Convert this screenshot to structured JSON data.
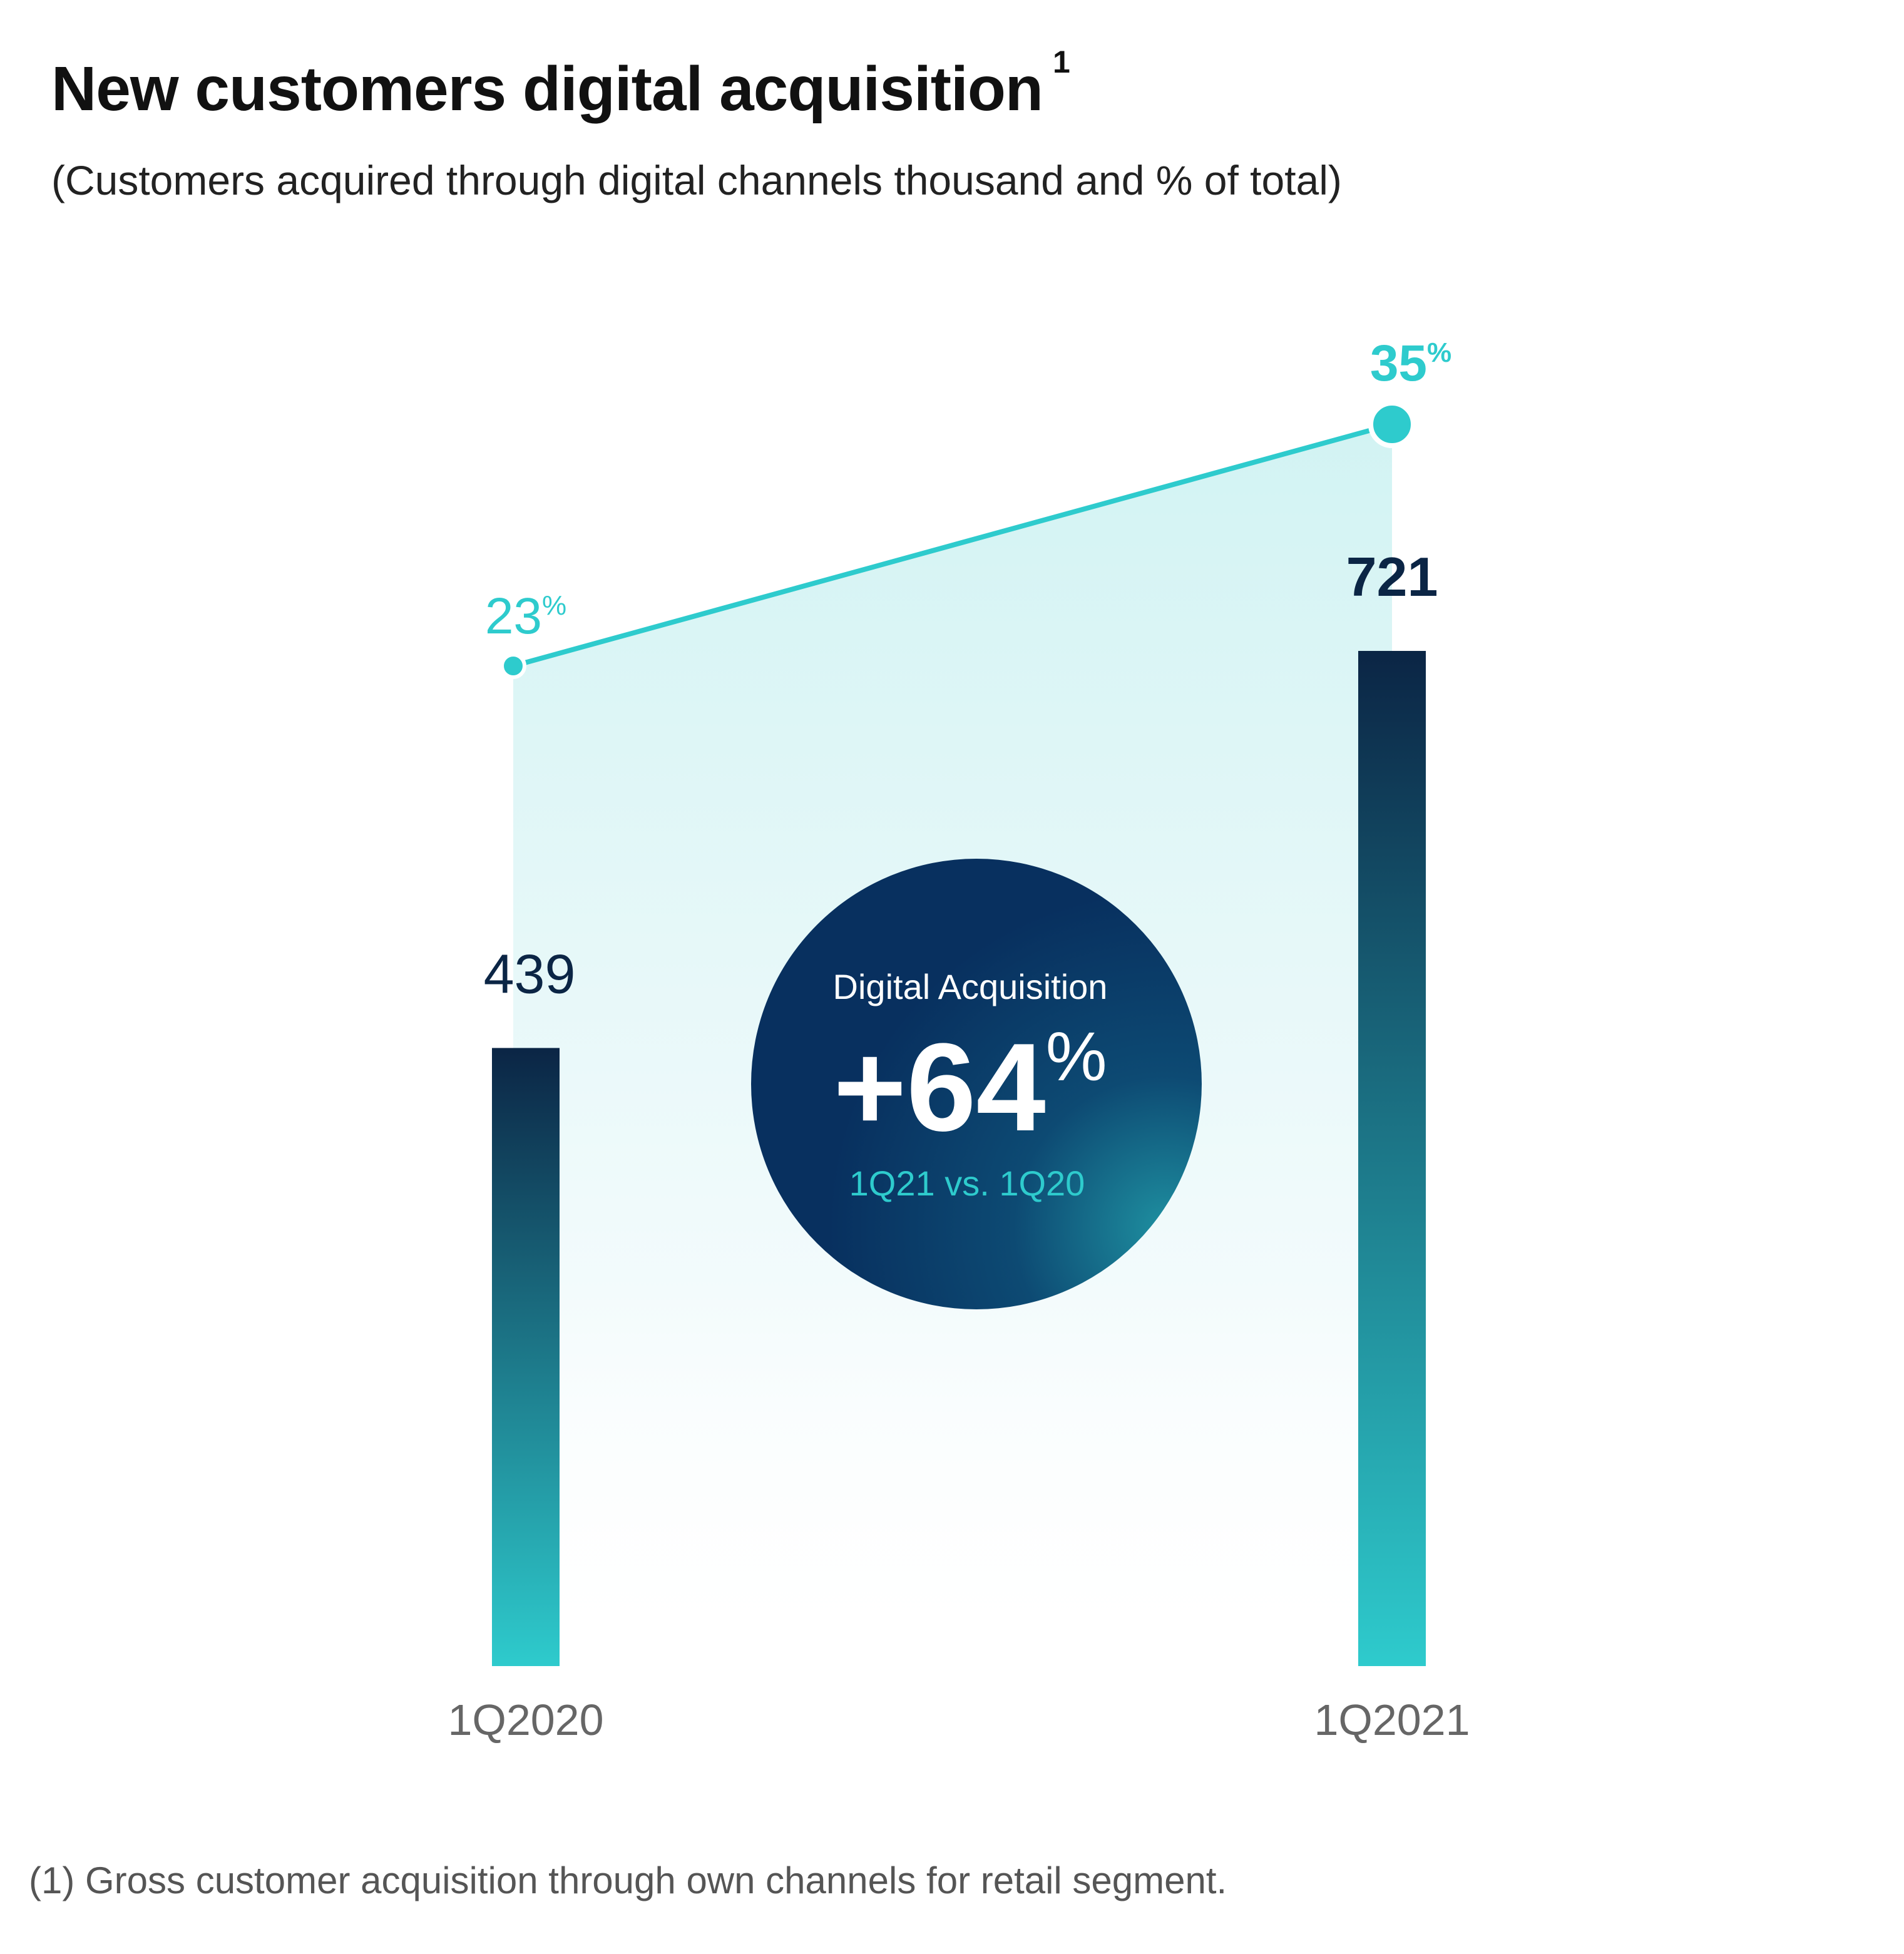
{
  "title": "New customers digital acquisition",
  "title_footnote_mark": "1",
  "subtitle": "(Customers acquired through digital channels thousand and % of total)",
  "footnote": "(1) Gross customer acquisition through own channels for retail segment.",
  "chart_data": {
    "type": "bar",
    "categories": [
      "1Q2020",
      "1Q2021"
    ],
    "series": [
      {
        "name": "Customers acquired through digital channels (thousand)",
        "values": [
          439,
          721
        ],
        "labels": [
          "439",
          "721"
        ]
      },
      {
        "name": "% of total",
        "type": "line",
        "values": [
          23,
          35
        ],
        "labels": [
          "23",
          "35"
        ],
        "unit": "%"
      }
    ],
    "ylim": [
      0,
      721
    ],
    "y2lim": [
      0,
      35
    ],
    "callout": {
      "title": "Digital Acquisition",
      "value": "+64",
      "unit": "%",
      "caption": "1Q21 vs. 1Q20"
    }
  },
  "colors": {
    "accent": "#2ECBCD",
    "navy": "#0B2545",
    "bubble": "#08305F",
    "area": "#D2F3F3"
  }
}
